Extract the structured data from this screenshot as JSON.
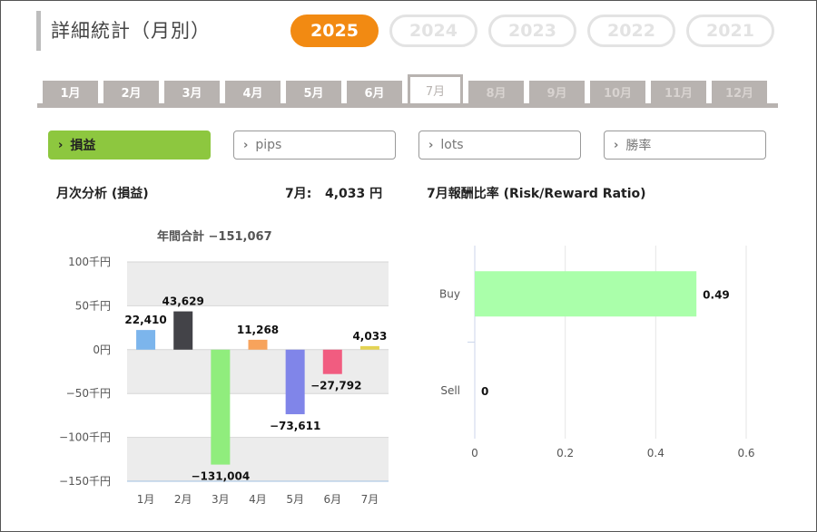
{
  "header": {
    "title": "詳細統計（月別）"
  },
  "years": [
    "2025",
    "2024",
    "2023",
    "2022",
    "2021"
  ],
  "months": [
    "1月",
    "2月",
    "3月",
    "4月",
    "5月",
    "6月",
    "7月",
    "8月",
    "9月",
    "10月",
    "11月",
    "12月"
  ],
  "metrics": {
    "profit": "損益",
    "pips": "pips",
    "lots": "lots",
    "winrate": "勝率"
  },
  "monthly": {
    "heading": "月次分析 (損益)",
    "selected_month": "7月:",
    "selected_value": "4,033 円",
    "annual_total": "年間合計 −151,067"
  },
  "rr": {
    "heading": "7月報酬比率 (Risk/Reward Ratio)"
  },
  "chart_data": [
    {
      "type": "bar",
      "categories": [
        "1月",
        "2月",
        "3月",
        "4月",
        "5月",
        "6月",
        "7月"
      ],
      "values": [
        22410,
        43629,
        -131004,
        11268,
        -73611,
        -27792,
        4033
      ],
      "labels": [
        "22,410",
        "43,629",
        "−131,004",
        "11,268",
        "−73,611",
        "−27,792",
        "4,033"
      ],
      "colors": [
        "#7cb5ec",
        "#434348",
        "#90ed7d",
        "#f7a35c",
        "#8085e9",
        "#f15c80",
        "#e4d354"
      ],
      "ylim": [
        -150000,
        100000
      ],
      "yticks": [
        100000,
        50000,
        0,
        -50000,
        -100000,
        -150000
      ],
      "ytick_labels": [
        "100千円",
        "50千円",
        "0円",
        "−50千円",
        "−100千円",
        "−150千円"
      ],
      "title": "年間合計 −151,067"
    },
    {
      "type": "bar",
      "orientation": "horizontal",
      "categories": [
        "Buy",
        "Sell"
      ],
      "values": [
        0.49,
        0
      ],
      "labels": [
        "0.49",
        "0"
      ],
      "colors": [
        "#aaffaa",
        "#aaffaa"
      ],
      "xlim": [
        0,
        0.6
      ],
      "xticks": [
        0,
        0.2,
        0.4,
        0.6
      ],
      "xtick_labels": [
        "0",
        "0.2",
        "0.4",
        "0.6"
      ]
    }
  ]
}
